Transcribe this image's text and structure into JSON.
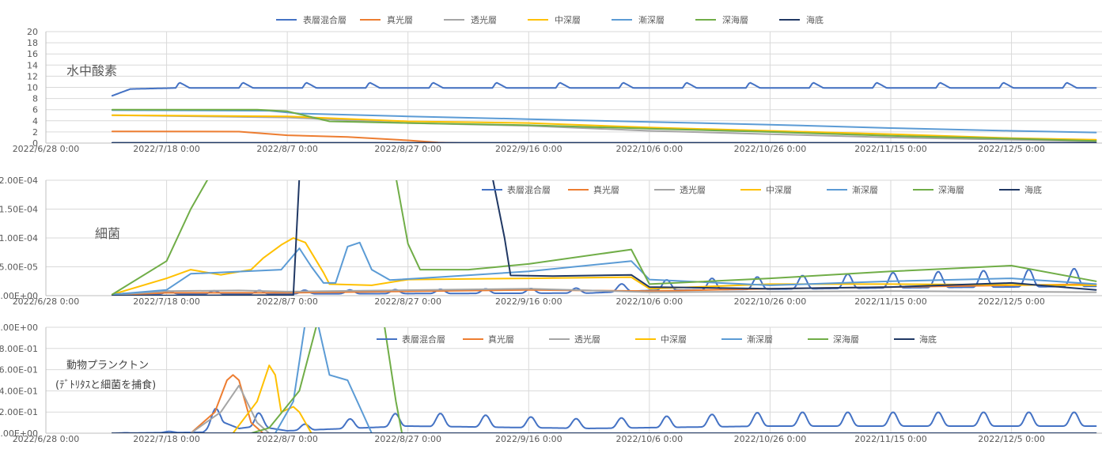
{
  "colors": {
    "表層混合層": "#4472c4",
    "真光層": "#ed7d31",
    "透光層": "#a5a5a5",
    "中深層": "#ffc000",
    "漸深層": "#5b9bd5",
    "深海層": "#70ad47",
    "海底": "#203864"
  },
  "chart_data": [
    {
      "type": "line",
      "title": "水中酸素",
      "x_ticks": [
        "2022/6/28 0:00",
        "2022/7/18 0:00",
        "2022/8/7 0:00",
        "2022/8/27 0:00",
        "2022/9/16 0:00",
        "2022/10/6 0:00",
        "2022/10/26 0:00",
        "2022/11/15 0:00",
        "2022/12/5 0:00"
      ],
      "y_ticks": [
        "0",
        "2",
        "4",
        "6",
        "8",
        "10",
        "12",
        "14",
        "16",
        "18",
        "20"
      ],
      "ylim": [
        0,
        20
      ],
      "xlim": [
        "2022-06-28",
        "2022-12-20"
      ],
      "legend": [
        "表層混合層",
        "真光層",
        "透光層",
        "中深層",
        "漸深層",
        "深海層",
        "海底"
      ],
      "legend_position": "top",
      "series": [
        {
          "name": "表層混合層",
          "pattern": "sawtooth",
          "period_days": 10.5,
          "points": [
            [
              "2022-07-09",
              8.5
            ],
            [
              "2022-07-12",
              9.7
            ],
            [
              "2022-07-20",
              9.9
            ],
            [
              "2022-12-19",
              9.9
            ]
          ]
        },
        {
          "name": "真光層",
          "points": [
            [
              "2022-07-09",
              2.1
            ],
            [
              "2022-07-30",
              2.05
            ],
            [
              "2022-08-07",
              1.4
            ],
            [
              "2022-08-17",
              1.1
            ],
            [
              "2022-08-27",
              0.5
            ],
            [
              "2022-09-01",
              0.1
            ],
            [
              "2022-09-05",
              0.0
            ],
            [
              "2022-12-19",
              0.0
            ]
          ]
        },
        {
          "name": "透光層",
          "points": [
            [
              "2022-07-09",
              5.0
            ],
            [
              "2022-08-07",
              4.6
            ],
            [
              "2022-08-27",
              3.6
            ],
            [
              "2022-09-16",
              3.1
            ],
            [
              "2022-10-06",
              2.2
            ],
            [
              "2022-10-26",
              1.6
            ],
            [
              "2022-11-15",
              1.0
            ],
            [
              "2022-12-05",
              0.6
            ],
            [
              "2022-12-19",
              0.3
            ]
          ]
        },
        {
          "name": "中深層",
          "points": [
            [
              "2022-07-09",
              5.0
            ],
            [
              "2022-08-07",
              4.8
            ],
            [
              "2022-08-27",
              3.9
            ],
            [
              "2022-09-16",
              3.6
            ],
            [
              "2022-10-06",
              2.8
            ],
            [
              "2022-10-26",
              2.2
            ],
            [
              "2022-11-15",
              1.6
            ],
            [
              "2022-12-05",
              0.9
            ],
            [
              "2022-12-19",
              0.6
            ]
          ]
        },
        {
          "name": "漸深層",
          "points": [
            [
              "2022-07-09",
              5.9
            ],
            [
              "2022-08-04",
              5.8
            ],
            [
              "2022-08-09",
              5.3
            ],
            [
              "2022-08-27",
              4.8
            ],
            [
              "2022-09-16",
              4.3
            ],
            [
              "2022-10-06",
              3.8
            ],
            [
              "2022-10-26",
              3.3
            ],
            [
              "2022-11-15",
              2.7
            ],
            [
              "2022-12-05",
              2.2
            ],
            [
              "2022-12-19",
              1.9
            ]
          ]
        },
        {
          "name": "深海層",
          "points": [
            [
              "2022-07-09",
              6.0
            ],
            [
              "2022-08-02",
              6.0
            ],
            [
              "2022-08-07",
              5.7
            ],
            [
              "2022-08-14",
              3.9
            ],
            [
              "2022-08-27",
              3.6
            ],
            [
              "2022-09-16",
              3.2
            ],
            [
              "2022-10-06",
              2.6
            ],
            [
              "2022-10-26",
              2.0
            ],
            [
              "2022-11-15",
              1.3
            ],
            [
              "2022-12-05",
              0.8
            ],
            [
              "2022-12-19",
              0.4
            ]
          ]
        },
        {
          "name": "海底",
          "points": [
            [
              "2022-07-09",
              0.05
            ],
            [
              "2022-12-19",
              0.05
            ]
          ]
        }
      ]
    },
    {
      "type": "line",
      "title": "細菌",
      "x_ticks": [
        "2022/6/28 0:00",
        "2022/7/18 0:00",
        "2022/8/7 0:00",
        "2022/8/27 0:00",
        "2022/9/16 0:00",
        "2022/10/6 0:00",
        "2022/10/26 0:00",
        "2022/11/15 0:00",
        "2022/12/5 0:00"
      ],
      "y_ticks": [
        "0.00E+00",
        "5.00E-05",
        "1.00E-04",
        "1.50E-04",
        "2.00E-04"
      ],
      "ylim": [
        0,
        0.0002
      ],
      "xlim": [
        "2022-06-28",
        "2022-12-20"
      ],
      "legend": [
        "表層混合層",
        "真光層",
        "透光層",
        "中深層",
        "漸深層",
        "深海層",
        "海底"
      ],
      "legend_position": "top-right",
      "series": [
        {
          "name": "表層混合層",
          "pattern": "wave",
          "period_days": 7.5,
          "points": [
            [
              "2022-07-09",
              2e-06
            ],
            [
              "2022-07-18",
              6e-06
            ],
            [
              "2022-08-27",
              8e-06
            ],
            [
              "2022-09-26",
              1e-05
            ],
            [
              "2022-10-06",
              2e-05
            ],
            [
              "2022-10-26",
              2.5e-05
            ],
            [
              "2022-11-15",
              3e-05
            ],
            [
              "2022-12-19",
              3.6e-05
            ]
          ]
        },
        {
          "name": "真光層",
          "points": [
            [
              "2022-07-09",
              1e-06
            ],
            [
              "2022-07-18",
              5e-06
            ],
            [
              "2022-08-07",
              5e-06
            ],
            [
              "2022-09-16",
              1e-05
            ],
            [
              "2022-10-06",
              8e-06
            ],
            [
              "2022-10-26",
              1.2e-05
            ],
            [
              "2022-11-15",
              1.5e-05
            ],
            [
              "2022-12-19",
              2e-05
            ]
          ]
        },
        {
          "name": "透光層",
          "points": [
            [
              "2022-07-09",
              1e-06
            ],
            [
              "2022-07-18",
              8e-06
            ],
            [
              "2022-07-30",
              9e-06
            ],
            [
              "2022-08-07",
              7e-06
            ],
            [
              "2022-09-16",
              1.2e-05
            ],
            [
              "2022-10-06",
              6e-06
            ],
            [
              "2022-11-15",
              8e-06
            ],
            [
              "2022-12-19",
              6e-06
            ]
          ]
        },
        {
          "name": "中深層",
          "points": [
            [
              "2022-07-09",
              2e-06
            ],
            [
              "2022-07-18",
              3e-05
            ],
            [
              "2022-07-22",
              4.5e-05
            ],
            [
              "2022-07-27",
              3.6e-05
            ],
            [
              "2022-08-01",
              4.5e-05
            ],
            [
              "2022-08-03",
              6.5e-05
            ],
            [
              "2022-08-06",
              8.8e-05
            ],
            [
              "2022-08-08",
              0.0001
            ],
            [
              "2022-08-10",
              9.2e-05
            ],
            [
              "2022-08-13",
              4e-05
            ],
            [
              "2022-08-14",
              2e-05
            ],
            [
              "2022-08-21",
              1.8e-05
            ],
            [
              "2022-08-27",
              2.8e-05
            ],
            [
              "2022-09-16",
              3e-05
            ],
            [
              "2022-10-03",
              3.2e-05
            ],
            [
              "2022-10-06",
              1.2e-05
            ],
            [
              "2022-10-26",
              2e-05
            ],
            [
              "2022-11-15",
              2e-05
            ],
            [
              "2022-12-19",
              1.8e-05
            ]
          ]
        },
        {
          "name": "漸深層",
          "points": [
            [
              "2022-07-09",
              2e-06
            ],
            [
              "2022-07-18",
              1e-05
            ],
            [
              "2022-07-22",
              3.8e-05
            ],
            [
              "2022-08-06",
              4.5e-05
            ],
            [
              "2022-08-09",
              8.2e-05
            ],
            [
              "2022-08-11",
              5e-05
            ],
            [
              "2022-08-13",
              2.2e-05
            ],
            [
              "2022-08-15",
              2.2e-05
            ],
            [
              "2022-08-17",
              8.5e-05
            ],
            [
              "2022-08-19",
              9.2e-05
            ],
            [
              "2022-08-21",
              4.5e-05
            ],
            [
              "2022-08-24",
              2.7e-05
            ],
            [
              "2022-09-01",
              3.2e-05
            ],
            [
              "2022-09-16",
              4.2e-05
            ],
            [
              "2022-10-03",
              6e-05
            ],
            [
              "2022-10-06",
              2.8e-05
            ],
            [
              "2022-10-26",
              1.8e-05
            ],
            [
              "2022-11-15",
              2.5e-05
            ],
            [
              "2022-12-05",
              3e-05
            ],
            [
              "2022-12-19",
              2e-05
            ]
          ]
        },
        {
          "name": "深海層",
          "points": [
            [
              "2022-07-09",
              2e-06
            ],
            [
              "2022-07-18",
              6e-05
            ],
            [
              "2022-07-22",
              0.00015
            ],
            [
              "2022-07-25",
              0.000205
            ],
            [
              "2022-08-25",
              0.000205
            ],
            [
              "2022-08-27",
              9e-05
            ],
            [
              "2022-08-29",
              4.5e-05
            ],
            [
              "2022-09-06",
              4.5e-05
            ],
            [
              "2022-09-16",
              5.5e-05
            ],
            [
              "2022-10-03",
              8e-05
            ],
            [
              "2022-10-06",
              2e-05
            ],
            [
              "2022-10-26",
              3e-05
            ],
            [
              "2022-11-15",
              4.2e-05
            ],
            [
              "2022-12-05",
              5.2e-05
            ],
            [
              "2022-12-19",
              2.5e-05
            ]
          ]
        },
        {
          "name": "海底",
          "points": [
            [
              "2022-07-09",
              0.0
            ],
            [
              "2022-08-08",
              1e-06
            ],
            [
              "2022-08-09",
              0.000205
            ],
            [
              "2022-08-09",
              0.000205
            ],
            [
              "2022-09-10",
              0.000205
            ],
            [
              "2022-09-12",
              0.0001
            ],
            [
              "2022-09-13",
              3.5e-05
            ],
            [
              "2022-09-20",
              3.4e-05
            ],
            [
              "2022-10-03",
              3.6e-05
            ],
            [
              "2022-10-06",
              1.5e-05
            ],
            [
              "2022-10-26",
              1.2e-05
            ],
            [
              "2022-11-15",
              1.5e-05
            ],
            [
              "2022-12-05",
              2.2e-05
            ],
            [
              "2022-12-19",
              1e-05
            ]
          ]
        }
      ]
    },
    {
      "type": "line",
      "title": "動物プランクトン",
      "subtitle": "(ﾃﾞﾄﾘﾀｽと細菌を捕食)",
      "x_ticks": [
        "2022/6/28 0:00",
        "2022/7/18 0:00",
        "2022/8/7 0:00",
        "2022/8/27 0:00",
        "2022/9/16 0:00",
        "2022/10/6 0:00",
        "2022/10/26 0:00",
        "2022/11/15 0:00",
        "2022/12/5 0:00"
      ],
      "y_ticks": [
        "0.00E+00",
        "2.00E-01",
        "4.00E-01",
        "6.00E-01",
        "8.00E-01",
        "1.00E+00"
      ],
      "ylim": [
        0,
        1.0
      ],
      "xlim": [
        "2022-06-28",
        "2022-12-20"
      ],
      "legend": [
        "表層混合層",
        "真光層",
        "透光層",
        "中深層",
        "漸深層",
        "深海層",
        "海底"
      ],
      "legend_position": "top-right",
      "series": [
        {
          "name": "表層混合層",
          "pattern": "wave",
          "period_days": 7.5,
          "points": [
            [
              "2022-07-09",
              0.0
            ],
            [
              "2022-07-24",
              0.02
            ],
            [
              "2022-07-27",
              0.25
            ],
            [
              "2022-07-30",
              0.1
            ],
            [
              "2022-08-02",
              0.15
            ],
            [
              "2022-08-07",
              0.05
            ],
            [
              "2022-08-27",
              0.15
            ],
            [
              "2022-09-26",
              0.1
            ],
            [
              "2022-10-26",
              0.15
            ],
            [
              "2022-12-19",
              0.15
            ]
          ]
        },
        {
          "name": "真光層",
          "points": [
            [
              "2022-07-09",
              0.0
            ],
            [
              "2022-07-22",
              0.0
            ],
            [
              "2022-07-26",
              0.2
            ],
            [
              "2022-07-28",
              0.5
            ],
            [
              "2022-07-29",
              0.55
            ],
            [
              "2022-07-30",
              0.5
            ],
            [
              "2022-08-01",
              0.1
            ],
            [
              "2022-08-03",
              0.0
            ],
            [
              "2022-08-10",
              0.0
            ]
          ]
        },
        {
          "name": "透光層",
          "points": [
            [
              "2022-07-09",
              0.0
            ],
            [
              "2022-07-22",
              0.0
            ],
            [
              "2022-07-27",
              0.2
            ],
            [
              "2022-07-30",
              0.45
            ],
            [
              "2022-08-02",
              0.1
            ],
            [
              "2022-08-04",
              0.0
            ],
            [
              "2022-08-10",
              0.0
            ]
          ]
        },
        {
          "name": "中深層",
          "points": [
            [
              "2022-07-09",
              0.0
            ],
            [
              "2022-07-29",
              0.0
            ],
            [
              "2022-08-02",
              0.3
            ],
            [
              "2022-08-04",
              0.64
            ],
            [
              "2022-08-05",
              0.55
            ],
            [
              "2022-08-06",
              0.2
            ],
            [
              "2022-08-08",
              0.25
            ],
            [
              "2022-08-09",
              0.2
            ],
            [
              "2022-08-11",
              0.0
            ],
            [
              "2022-08-20",
              0.0
            ]
          ]
        },
        {
          "name": "漸深層",
          "points": [
            [
              "2022-07-09",
              0.0
            ],
            [
              "2022-08-05",
              0.0
            ],
            [
              "2022-08-08",
              0.3
            ],
            [
              "2022-08-10",
              1.05
            ],
            [
              "2022-08-12",
              1.05
            ],
            [
              "2022-08-14",
              0.55
            ],
            [
              "2022-08-17",
              0.5
            ],
            [
              "2022-08-19",
              0.25
            ],
            [
              "2022-08-21",
              0.0
            ],
            [
              "2022-08-30",
              0.0
            ]
          ]
        },
        {
          "name": "深海層",
          "points": [
            [
              "2022-07-09",
              0.0
            ],
            [
              "2022-08-01",
              0.0
            ],
            [
              "2022-08-04",
              0.05
            ],
            [
              "2022-08-09",
              0.4
            ],
            [
              "2022-08-12",
              1.05
            ],
            [
              "2022-08-16",
              1.05
            ],
            [
              "2022-08-23",
              1.05
            ],
            [
              "2022-08-25",
              0.3
            ],
            [
              "2022-08-26",
              0.0
            ],
            [
              "2022-09-05",
              0.0
            ]
          ]
        },
        {
          "name": "海底",
          "points": [
            [
              "2022-07-09",
              0.0
            ],
            [
              "2022-12-19",
              0.0
            ]
          ]
        }
      ]
    }
  ]
}
